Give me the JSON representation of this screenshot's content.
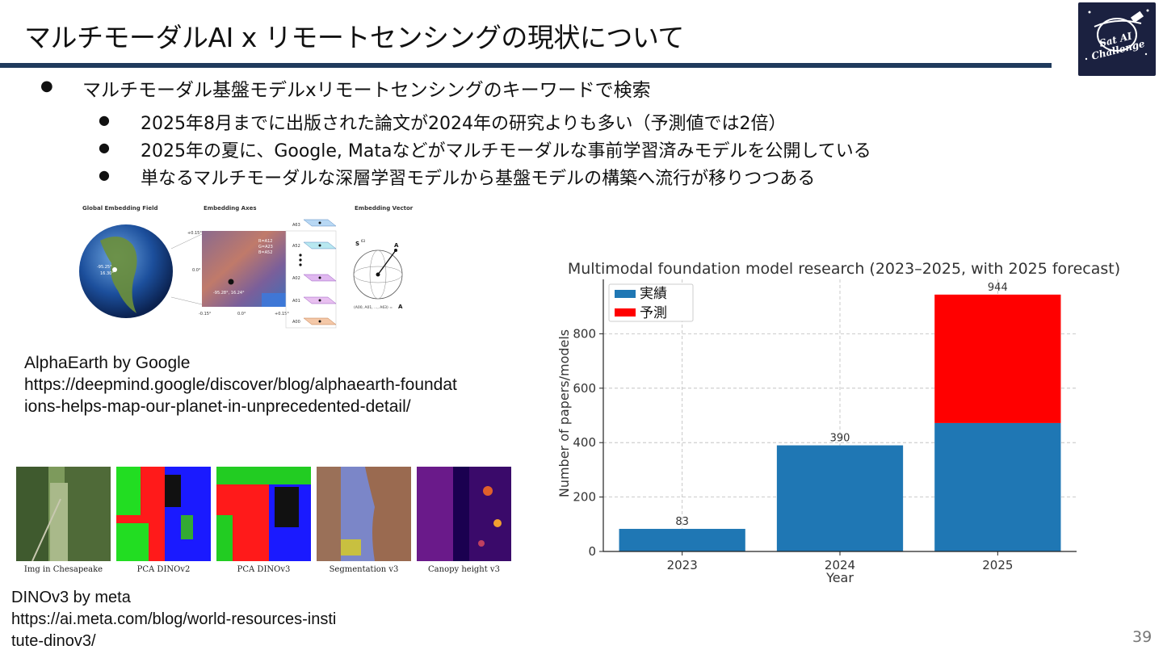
{
  "slide": {
    "title": "マルチモーダルAI x リモートセンシングの現状について",
    "logo_text_line1": "Sat AI",
    "logo_text_line2": "Challenge",
    "page_number": "39"
  },
  "bullets": {
    "main": "マルチモーダル基盤モデルxリモートセンシングのキーワードで検索",
    "sub": [
      "2025年8月までに出版された論文が2024年の研究よりも多い（予測値では2倍）",
      "2025年の夏に、Google, Mataなどがマルチモーダルな事前学習済みモデルを公開している",
      "単なるマルチモーダルな深層学習モデルから基盤モデルの構築へ流行が移りつつある"
    ],
    "bullet_glyph": "●"
  },
  "alphaearth": {
    "panel_titles": [
      "Global Embedding Field",
      "Embedding Axes",
      "Embedding Vector"
    ],
    "globe_coords": "-95.25°\n16.30°",
    "map_coords": "-95.28°, 16.24°",
    "map_legend": [
      "R=A12",
      "G=A23",
      "B=A52"
    ],
    "map_ticks_x": [
      "-0.15°",
      "0.0°",
      "+0.15°"
    ],
    "map_ticks_y": [
      "+0.15°",
      "0.0°"
    ],
    "axis_layers": [
      "A63",
      "A52",
      "A02",
      "A01",
      "A00"
    ],
    "sphere_label": "S",
    "sphere_superscript": "63",
    "vector_label": "A",
    "vector_formula": "(A00, A01, ..., A63) = A",
    "caption_line1": "AlphaEarth by Google",
    "caption_line2": "https://deepmind.google/discover/blog/alphaearth-foundat",
    "caption_line3": "ions-helps-map-our-planet-in-unprecedented-detail/"
  },
  "dinov3": {
    "tiles": [
      "Img in Chesapeake",
      "PCA DINOv2",
      "PCA DINOv3",
      "Segmentation v3",
      "Canopy height v3"
    ],
    "caption_line1": "DINOv3 by meta",
    "caption_line2": "https://ai.meta.com/blog/world-resources-insti",
    "caption_line3": "tute-dinov3/"
  },
  "chart_data": {
    "type": "bar",
    "stacked": true,
    "title": "Multimodal foundation model research (2023–2025, with 2025 forecast)",
    "xlabel": "Year",
    "ylabel": "Number of papers/models",
    "categories": [
      "2023",
      "2024",
      "2025"
    ],
    "series": [
      {
        "name": "実績",
        "values": [
          83,
          390,
          472
        ],
        "color": "#1f77b4"
      },
      {
        "name": "予測",
        "values": [
          0,
          0,
          472
        ],
        "color": "#ff0000"
      }
    ],
    "totals": [
      83,
      390,
      944
    ],
    "total_labels": [
      "83",
      "390",
      "944"
    ],
    "ylim": [
      0,
      1000
    ],
    "yticks": [
      0,
      200,
      400,
      600,
      800
    ],
    "grid": true,
    "legend": "top-left"
  }
}
